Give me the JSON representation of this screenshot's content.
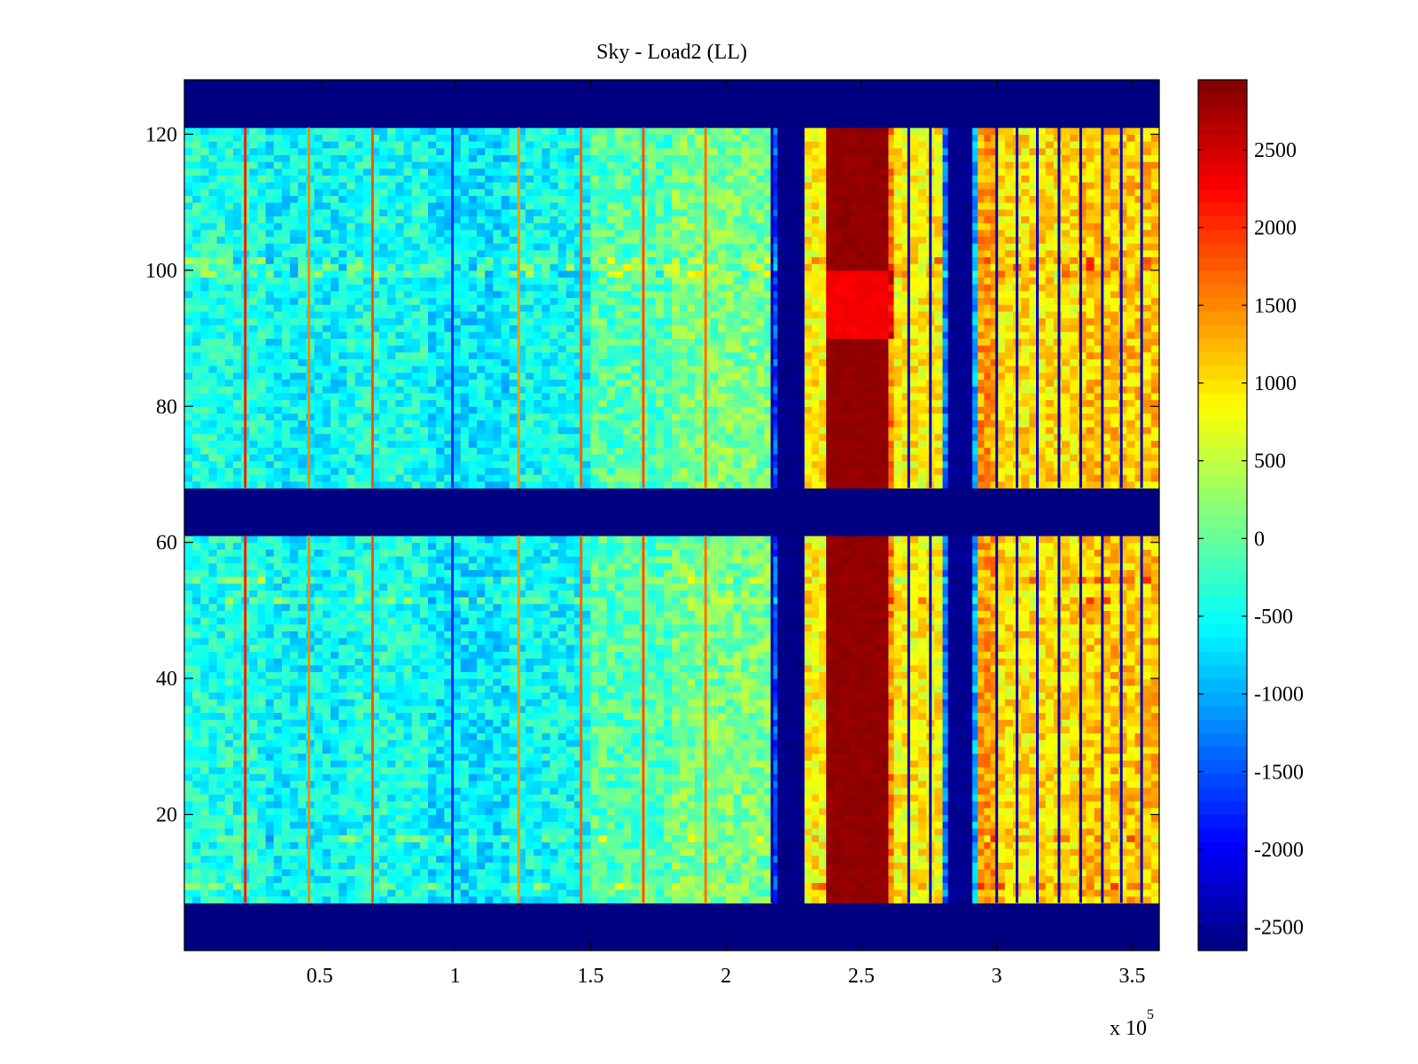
{
  "chart_data": {
    "type": "heatmap",
    "title": "Sky - Load2 (LL)",
    "xlabel": "",
    "ylabel": "",
    "x_multiplier_label": "x 10",
    "x_multiplier_exponent": "5",
    "xlim": [
      0,
      360000
    ],
    "ylim": [
      0,
      128
    ],
    "x_ticks": [
      50000,
      100000,
      150000,
      200000,
      250000,
      300000,
      350000
    ],
    "x_tick_labels": [
      "0.5",
      "1",
      "1.5",
      "2",
      "2.5",
      "3",
      "3.5"
    ],
    "y_ticks": [
      20,
      40,
      60,
      80,
      100,
      120
    ],
    "y_tick_labels": [
      "20",
      "40",
      "60",
      "80",
      "100",
      "120"
    ],
    "colormap": "jet",
    "clim": [
      -2650,
      2950
    ],
    "colorbar": {
      "ticks": [
        -2500,
        -2000,
        -1500,
        -1000,
        -500,
        0,
        500,
        1000,
        1500,
        2000,
        2500
      ],
      "tick_labels": [
        "-2500",
        "-2000",
        "-1500",
        "-1000",
        "-500",
        "0",
        "500",
        "1000",
        "1500",
        "2000",
        "2500"
      ],
      "placement": "right"
    },
    "masked_row_ranges": [
      [
        0,
        7
      ],
      [
        61,
        68
      ],
      [
        121,
        128
      ]
    ],
    "mask_value": -2650,
    "stripe_artifact_rows": [
      9,
      16,
      51,
      54,
      99,
      100,
      101
    ],
    "column_segments": [
      {
        "x_start": 0,
        "x_end": 30000,
        "value": -400
      },
      {
        "x_start": 30000,
        "x_end": 60000,
        "value": -550
      },
      {
        "x_start": 60000,
        "x_end": 90000,
        "value": -450
      },
      {
        "x_start": 90000,
        "x_end": 120000,
        "value": -650
      },
      {
        "x_start": 120000,
        "x_end": 150000,
        "value": -500
      },
      {
        "x_start": 150000,
        "x_end": 180000,
        "value": -100
      },
      {
        "x_start": 180000,
        "x_end": 217000,
        "value": 100
      },
      {
        "x_start": 217000,
        "x_end": 219000,
        "value": -1500
      },
      {
        "x_start": 219000,
        "x_end": 229000,
        "value": -2600
      },
      {
        "x_start": 229000,
        "x_end": 237000,
        "value": 900
      },
      {
        "x_start": 237000,
        "x_end": 260000,
        "value": 2850
      },
      {
        "x_start": 260000,
        "x_end": 262000,
        "value": 1500
      },
      {
        "x_start": 262000,
        "x_end": 280000,
        "value": 900
      },
      {
        "x_start": 280000,
        "x_end": 282000,
        "value": -1300
      },
      {
        "x_start": 282000,
        "x_end": 291000,
        "value": -2550
      },
      {
        "x_start": 291000,
        "x_end": 293000,
        "value": -1000
      },
      {
        "x_start": 293000,
        "x_end": 300000,
        "value": 1400
      },
      {
        "x_start": 300000,
        "x_end": 330000,
        "value": 1000
      },
      {
        "x_start": 330000,
        "x_end": 360000,
        "value": 1150
      }
    ],
    "upper_block_overrides": [
      {
        "x_start": 237000,
        "x_end": 262000,
        "rows": [
          90,
          100
        ],
        "value": 2300
      }
    ],
    "vertical_lines": [
      {
        "x": 22500,
        "value": 2100
      },
      {
        "x": 46000,
        "value": 1500
      },
      {
        "x": 69500,
        "value": 1800
      },
      {
        "x": 99000,
        "value": -1700
      },
      {
        "x": 123500,
        "value": 1400
      },
      {
        "x": 146500,
        "value": 1700
      },
      {
        "x": 169500,
        "value": 1800
      },
      {
        "x": 192500,
        "value": 1600
      },
      {
        "x": 217000,
        "value": -2400
      },
      {
        "x": 267500,
        "value": -2200
      },
      {
        "x": 275500,
        "value": -2300
      },
      {
        "x": 300000,
        "value": -2300
      },
      {
        "x": 307500,
        "value": -2300
      },
      {
        "x": 315000,
        "value": -2300
      },
      {
        "x": 323000,
        "value": -2300
      },
      {
        "x": 331000,
        "value": -2300
      },
      {
        "x": 339000,
        "value": -2300
      },
      {
        "x": 346000,
        "value": -2300
      },
      {
        "x": 353500,
        "value": -2300
      }
    ]
  }
}
